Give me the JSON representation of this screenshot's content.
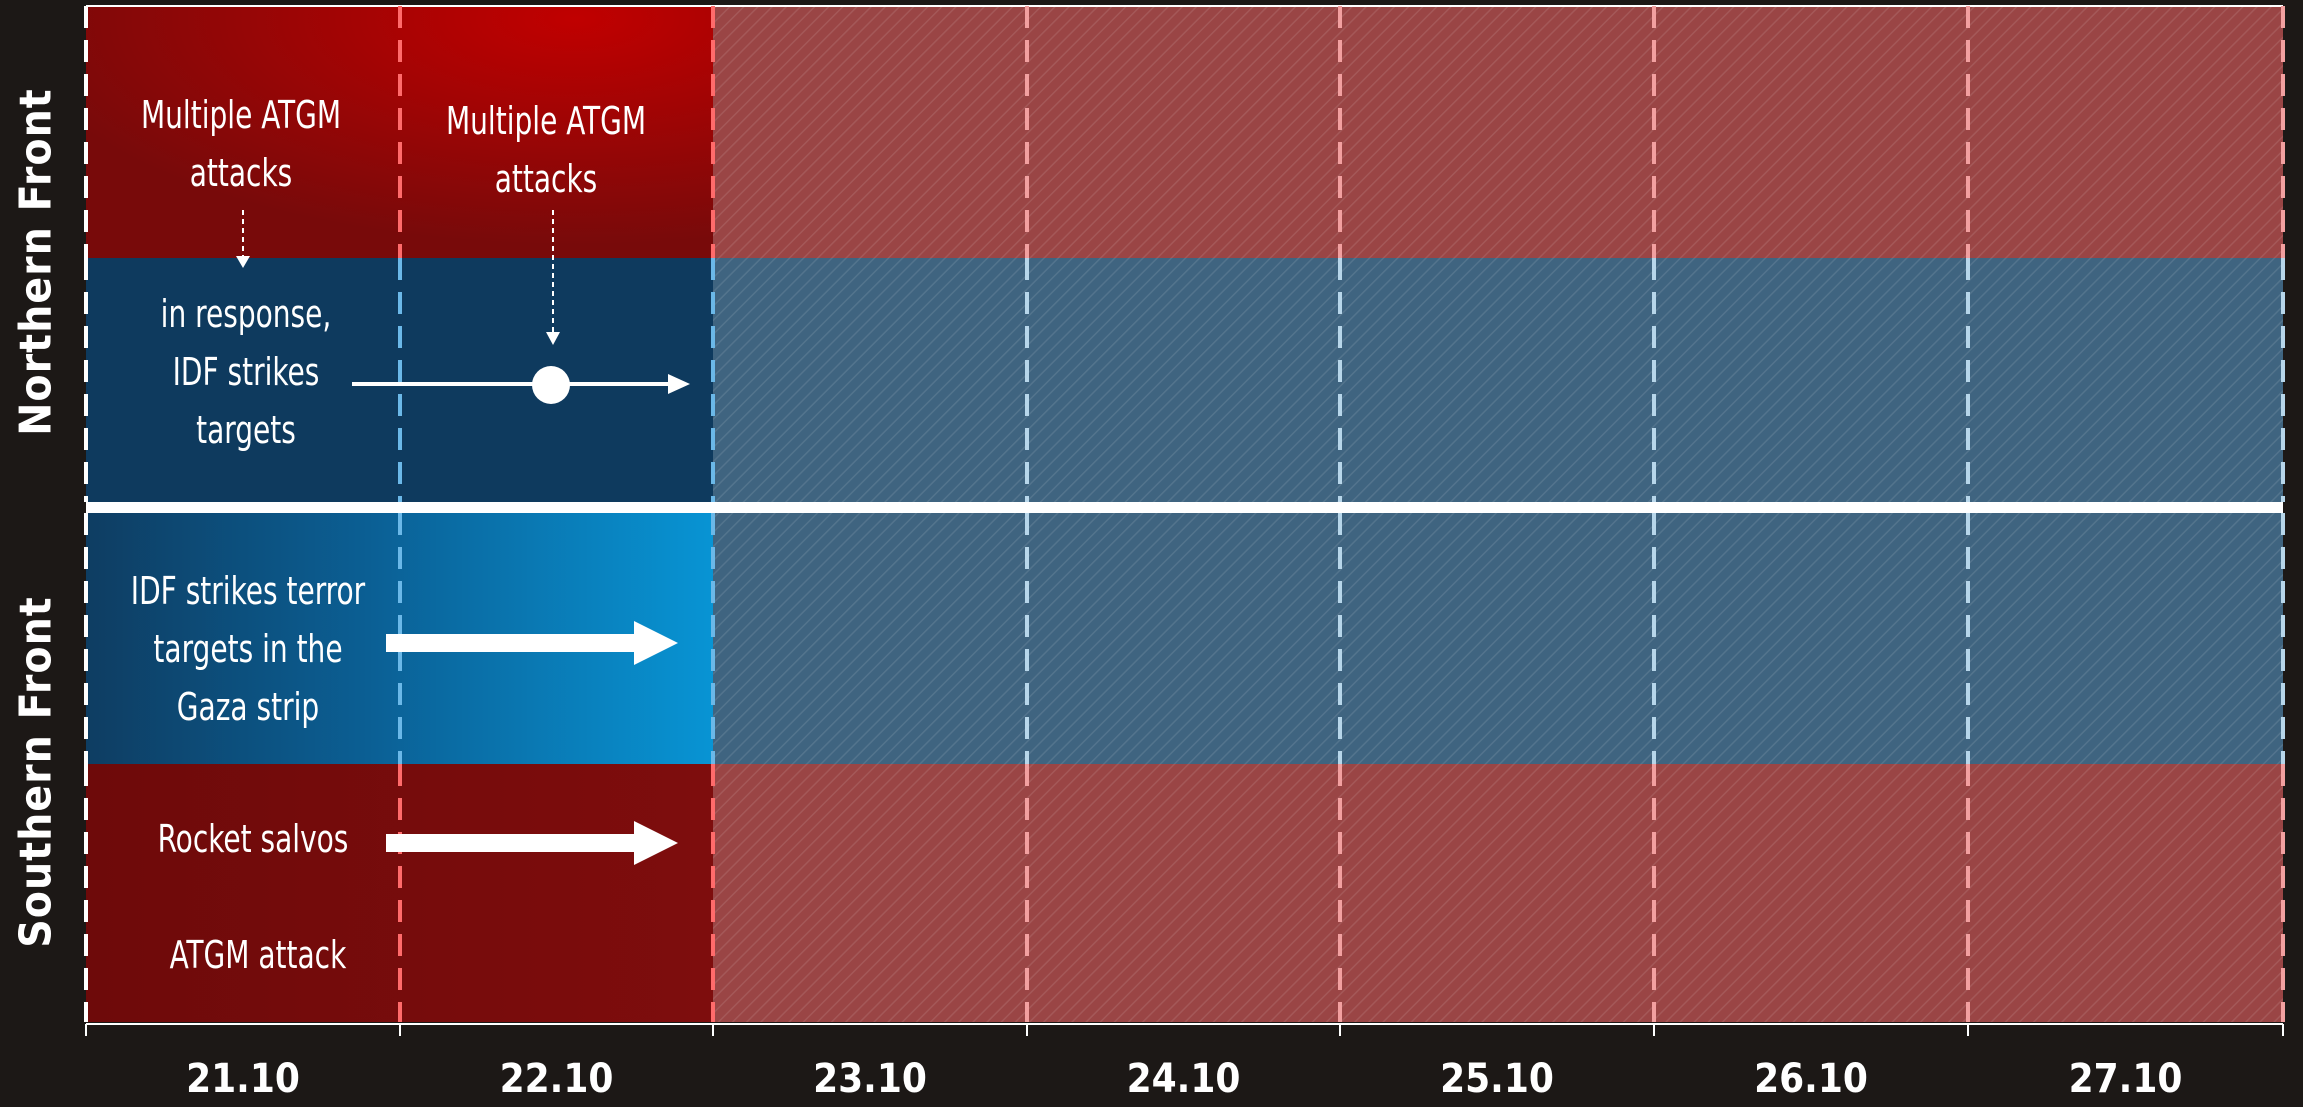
{
  "fronts": {
    "north_label": "Northern Front",
    "south_label": "Southern Front"
  },
  "dates": [
    "21.10",
    "22.10",
    "23.10",
    "24.10",
    "25.10",
    "26.10",
    "27.10"
  ],
  "events": {
    "north_atgm_day1": "Multiple ATGM\nattacks",
    "north_atgm_day2": "Multiple ATGM\nattacks",
    "north_idf_response": "in response,\nIDF strikes\ntargets",
    "south_idf_strikes": "IDF strikes terror\ntargets in the\nGaza strip",
    "south_rockets": "Rocket salvos",
    "south_atgm": "ATGM attack"
  },
  "colors": {
    "background": "#1c1816",
    "attack_red": "#7a0c0c",
    "attack_red_bright": "#b30000",
    "idf_blue_dark": "#0e3a5e",
    "idf_blue_bright": "#0a8fcf",
    "future_red": "#9a4545",
    "future_blue": "#3f6480",
    "divider": "#ffffff"
  }
}
